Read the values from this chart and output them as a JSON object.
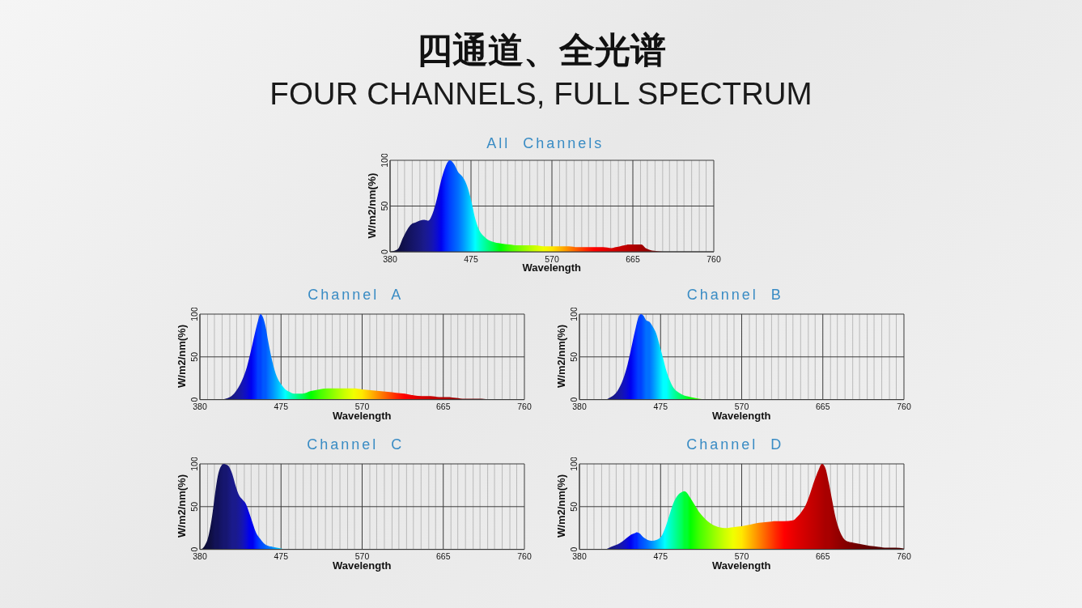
{
  "chart_data": [
    {
      "type": "other",
      "title": "四通道、全光谱",
      "subtitle": "FOUR CHANNELS, FULL SPECTRUM"
    },
    {
      "type": "area",
      "title": "All Channels",
      "xlabel": "Wavelength",
      "ylabel": "W/m2/nm(%)",
      "grid": true,
      "xlim": [
        380,
        760
      ],
      "ylim": [
        0,
        100
      ],
      "yticks": [
        0,
        50,
        100
      ],
      "xticks": [
        380,
        {
          "value": 389,
          "label": null
        },
        {
          "value": 397,
          "label": null
        },
        {
          "value": 406,
          "label": null
        },
        {
          "value": 415,
          "label": null
        },
        {
          "value": 423,
          "label": null
        },
        {
          "value": 432,
          "label": null
        },
        {
          "value": 440,
          "label": null
        },
        {
          "value": 449,
          "label": null
        },
        {
          "value": 458,
          "label": null
        },
        {
          "value": 466,
          "label": null
        },
        475,
        {
          "value": 484,
          "label": null
        },
        {
          "value": 492,
          "label": null
        },
        {
          "value": 501,
          "label": null
        },
        {
          "value": 510,
          "label": null
        },
        {
          "value": 518,
          "label": null
        },
        {
          "value": 527,
          "label": null
        },
        {
          "value": 535,
          "label": null
        },
        {
          "value": 544,
          "label": null
        },
        {
          "value": 553,
          "label": null
        },
        {
          "value": 561,
          "label": null
        },
        570,
        {
          "value": 579,
          "label": null
        },
        {
          "value": 587,
          "label": null
        },
        {
          "value": 596,
          "label": null
        },
        {
          "value": 605,
          "label": null
        },
        {
          "value": 613,
          "label": null
        },
        {
          "value": 622,
          "label": null
        },
        {
          "value": 630,
          "label": null
        },
        {
          "value": 639,
          "label": null
        },
        {
          "value": 648,
          "label": null
        },
        {
          "value": 656,
          "label": null
        },
        665,
        {
          "value": 674,
          "label": null
        },
        {
          "value": 682,
          "label": null
        },
        {
          "value": 691,
          "label": null
        },
        {
          "value": 700,
          "label": null
        },
        {
          "value": 708,
          "label": null
        },
        {
          "value": 717,
          "label": null
        },
        {
          "value": 725,
          "label": null
        },
        {
          "value": 734,
          "label": null
        },
        {
          "value": 743,
          "label": null
        },
        {
          "value": 751,
          "label": null
        },
        760
      ],
      "x": [
        380,
        385,
        390,
        395,
        400,
        405,
        410,
        415,
        420,
        425,
        430,
        435,
        440,
        445,
        450,
        455,
        460,
        465,
        470,
        475,
        480,
        485,
        490,
        495,
        500,
        510,
        520,
        530,
        540,
        550,
        560,
        570,
        580,
        590,
        600,
        610,
        620,
        630,
        640,
        645,
        650,
        655,
        660,
        665,
        670,
        675,
        680,
        685,
        690,
        700,
        720,
        740,
        760
      ],
      "values": [
        0,
        1,
        4,
        15,
        24,
        30,
        32,
        34,
        35,
        34,
        42,
        58,
        78,
        93,
        100,
        96,
        87,
        82,
        73,
        57,
        36,
        23,
        17,
        13,
        11,
        9,
        8,
        7,
        7,
        7,
        6,
        6,
        6,
        6,
        5,
        5,
        5,
        5,
        4,
        5,
        6,
        7,
        8,
        8,
        8,
        8,
        4,
        2,
        1,
        0,
        0,
        0,
        0
      ],
      "colors": [
        "#0a0a28",
        "#0c0c34",
        "#0e0e40",
        "#10104c",
        "#121258",
        "#141464",
        "#161670",
        "#18187c",
        "#1a1a8c",
        "#18189c",
        "#1414b4",
        "#0c0cd0",
        "#0000ee",
        "#0022ff",
        "#0040ff",
        "#0058ff",
        "#0070ff",
        "#0090ff",
        "#00b4ff",
        "#00d8ff",
        "#00ffff",
        "#00ffd0",
        "#00ffa8",
        "#00ff80",
        "#00ff58",
        "#00ff00",
        "#40ff00",
        "#70ff00",
        "#a0ff00",
        "#ccff00",
        "#f0ff00",
        "#ffe800",
        "#ffb800",
        "#ff8800",
        "#ff5800",
        "#ff2800",
        "#ff0000",
        "#ea0000",
        "#d80000",
        "#d00000",
        "#c80000",
        "#c00000",
        "#b80000",
        "#b00000",
        "#a80000",
        "#a00000",
        "#980000",
        "#900000",
        "#880000",
        "#780000",
        "#600000",
        "#500000",
        "#500000"
      ]
    },
    {
      "type": "area",
      "title": "Channel A",
      "xlabel": "Wavelength",
      "ylabel": "W/m2/nm(%)",
      "grid": true,
      "xlim": [
        380,
        760
      ],
      "ylim": [
        0,
        100
      ],
      "yticks": [
        0,
        50,
        100
      ],
      "xticks": [
        380,
        {
          "value": 389,
          "label": null
        },
        {
          "value": 397,
          "label": null
        },
        {
          "value": 406,
          "label": null
        },
        {
          "value": 415,
          "label": null
        },
        {
          "value": 423,
          "label": null
        },
        {
          "value": 432,
          "label": null
        },
        {
          "value": 440,
          "label": null
        },
        {
          "value": 449,
          "label": null
        },
        {
          "value": 458,
          "label": null
        },
        {
          "value": 466,
          "label": null
        },
        475,
        {
          "value": 484,
          "label": null
        },
        {
          "value": 492,
          "label": null
        },
        {
          "value": 501,
          "label": null
        },
        {
          "value": 510,
          "label": null
        },
        {
          "value": 518,
          "label": null
        },
        {
          "value": 527,
          "label": null
        },
        {
          "value": 535,
          "label": null
        },
        {
          "value": 544,
          "label": null
        },
        {
          "value": 553,
          "label": null
        },
        {
          "value": 561,
          "label": null
        },
        570,
        {
          "value": 579,
          "label": null
        },
        {
          "value": 587,
          "label": null
        },
        {
          "value": 596,
          "label": null
        },
        {
          "value": 605,
          "label": null
        },
        {
          "value": 613,
          "label": null
        },
        {
          "value": 622,
          "label": null
        },
        {
          "value": 630,
          "label": null
        },
        {
          "value": 639,
          "label": null
        },
        {
          "value": 648,
          "label": null
        },
        {
          "value": 656,
          "label": null
        },
        665,
        {
          "value": 674,
          "label": null
        },
        {
          "value": 682,
          "label": null
        },
        {
          "value": 691,
          "label": null
        },
        {
          "value": 700,
          "label": null
        },
        {
          "value": 708,
          "label": null
        },
        {
          "value": 717,
          "label": null
        },
        {
          "value": 725,
          "label": null
        },
        {
          "value": 734,
          "label": null
        },
        {
          "value": 743,
          "label": null
        },
        {
          "value": 751,
          "label": null
        },
        760
      ],
      "x": [
        380,
        400,
        405,
        410,
        415,
        420,
        425,
        430,
        435,
        440,
        445,
        448,
        451,
        454,
        457,
        460,
        465,
        470,
        475,
        480,
        485,
        490,
        495,
        500,
        510,
        520,
        530,
        540,
        550,
        560,
        570,
        580,
        590,
        600,
        610,
        620,
        630,
        640,
        650,
        660,
        670,
        680,
        690,
        700,
        710,
        720,
        730,
        740,
        760
      ],
      "values": [
        0,
        0,
        0,
        1,
        3,
        7,
        14,
        24,
        38,
        58,
        80,
        92,
        100,
        96,
        85,
        68,
        44,
        27,
        18,
        12,
        9,
        7,
        7,
        7,
        10,
        12,
        13,
        13,
        13,
        13,
        12,
        11,
        10,
        9,
        8,
        7,
        5,
        4,
        4,
        3,
        3,
        2,
        1,
        1,
        1,
        0,
        0,
        0,
        0
      ],
      "colors": [
        "#0a0a28",
        "#121258",
        "#141464",
        "#161670",
        "#18187c",
        "#1a1a8c",
        "#18189c",
        "#1414b4",
        "#0c0cd0",
        "#0000ee",
        "#0022ff",
        "#0040ff",
        "#0040ff",
        "#0058ff",
        "#0058ff",
        "#0070ff",
        "#0090ff",
        "#00b4ff",
        "#00d8ff",
        "#00ffff",
        "#00ffd0",
        "#00ffa8",
        "#00ff80",
        "#00ff58",
        "#00ff00",
        "#40ff00",
        "#70ff00",
        "#a0ff00",
        "#ccff00",
        "#f0ff00",
        "#ffe800",
        "#ffb800",
        "#ff8800",
        "#ff5800",
        "#ff2800",
        "#ff0000",
        "#ea0000",
        "#d80000",
        "#c80000",
        "#b80000",
        "#a80000",
        "#980000",
        "#880000",
        "#780000",
        "#6a0000",
        "#600000",
        "#580000",
        "#500000",
        "#500000"
      ]
    },
    {
      "type": "area",
      "title": "Channel B",
      "xlabel": "Wavelength",
      "ylabel": "W/m2/nm(%)",
      "grid": true,
      "xlim": [
        380,
        760
      ],
      "ylim": [
        0,
        100
      ],
      "yticks": [
        0,
        50,
        100
      ],
      "xticks": [
        380,
        {
          "value": 389,
          "label": null
        },
        {
          "value": 397,
          "label": null
        },
        {
          "value": 406,
          "label": null
        },
        {
          "value": 415,
          "label": null
        },
        {
          "value": 423,
          "label": null
        },
        {
          "value": 432,
          "label": null
        },
        {
          "value": 440,
          "label": null
        },
        {
          "value": 449,
          "label": null
        },
        {
          "value": 458,
          "label": null
        },
        {
          "value": 466,
          "label": null
        },
        475,
        {
          "value": 484,
          "label": null
        },
        {
          "value": 492,
          "label": null
        },
        {
          "value": 501,
          "label": null
        },
        {
          "value": 510,
          "label": null
        },
        {
          "value": 518,
          "label": null
        },
        {
          "value": 527,
          "label": null
        },
        {
          "value": 535,
          "label": null
        },
        {
          "value": 544,
          "label": null
        },
        {
          "value": 553,
          "label": null
        },
        {
          "value": 561,
          "label": null
        },
        570,
        {
          "value": 579,
          "label": null
        },
        {
          "value": 587,
          "label": null
        },
        {
          "value": 596,
          "label": null
        },
        {
          "value": 605,
          "label": null
        },
        {
          "value": 613,
          "label": null
        },
        {
          "value": 622,
          "label": null
        },
        {
          "value": 630,
          "label": null
        },
        {
          "value": 639,
          "label": null
        },
        {
          "value": 648,
          "label": null
        },
        {
          "value": 656,
          "label": null
        },
        665,
        {
          "value": 674,
          "label": null
        },
        {
          "value": 682,
          "label": null
        },
        {
          "value": 691,
          "label": null
        },
        {
          "value": 700,
          "label": null
        },
        {
          "value": 708,
          "label": null
        },
        {
          "value": 717,
          "label": null
        },
        {
          "value": 725,
          "label": null
        },
        {
          "value": 734,
          "label": null
        },
        {
          "value": 743,
          "label": null
        },
        {
          "value": 751,
          "label": null
        },
        760
      ],
      "x": [
        380,
        400,
        410,
        415,
        420,
        425,
        430,
        435,
        440,
        445,
        449,
        452,
        455,
        458,
        462,
        466,
        470,
        474,
        478,
        482,
        486,
        490,
        495,
        500,
        505,
        510,
        520,
        530,
        540,
        560,
        600,
        650,
        700,
        760
      ],
      "values": [
        0,
        0,
        0,
        2,
        5,
        11,
        21,
        36,
        57,
        80,
        96,
        100,
        98,
        93,
        91,
        85,
        77,
        63,
        48,
        33,
        22,
        14,
        9,
        6,
        4,
        3,
        1,
        0,
        0,
        0,
        0,
        0,
        0,
        0
      ],
      "colors": [
        "#0a0a28",
        "#121258",
        "#161670",
        "#18187c",
        "#1a1a8c",
        "#18189c",
        "#1414b4",
        "#0c0cd0",
        "#0000ee",
        "#0022ff",
        "#0040ff",
        "#0040ff",
        "#0058ff",
        "#0070ff",
        "#0070ff",
        "#0090ff",
        "#00b4ff",
        "#00d8ff",
        "#00ffff",
        "#00ffff",
        "#00ffd0",
        "#00ffa8",
        "#00ff80",
        "#00ff58",
        "#00ff30",
        "#00ff00",
        "#40ff00",
        "#70ff00",
        "#a0ff00",
        "#f0ff00",
        "#ff5800",
        "#c80000",
        "#780000",
        "#500000"
      ]
    },
    {
      "type": "area",
      "title": "Channel C",
      "xlabel": "Wavelength",
      "ylabel": "W/m2/nm(%)",
      "grid": true,
      "xlim": [
        380,
        760
      ],
      "ylim": [
        0,
        100
      ],
      "yticks": [
        0,
        50,
        100
      ],
      "xticks": [
        380,
        {
          "value": 389,
          "label": null
        },
        {
          "value": 397,
          "label": null
        },
        {
          "value": 406,
          "label": null
        },
        {
          "value": 415,
          "label": null
        },
        {
          "value": 423,
          "label": null
        },
        {
          "value": 432,
          "label": null
        },
        {
          "value": 440,
          "label": null
        },
        {
          "value": 449,
          "label": null
        },
        {
          "value": 458,
          "label": null
        },
        {
          "value": 466,
          "label": null
        },
        475,
        {
          "value": 484,
          "label": null
        },
        {
          "value": 492,
          "label": null
        },
        {
          "value": 501,
          "label": null
        },
        {
          "value": 510,
          "label": null
        },
        {
          "value": 518,
          "label": null
        },
        {
          "value": 527,
          "label": null
        },
        {
          "value": 535,
          "label": null
        },
        {
          "value": 544,
          "label": null
        },
        {
          "value": 553,
          "label": null
        },
        {
          "value": 561,
          "label": null
        },
        570,
        {
          "value": 579,
          "label": null
        },
        {
          "value": 587,
          "label": null
        },
        {
          "value": 596,
          "label": null
        },
        {
          "value": 605,
          "label": null
        },
        {
          "value": 613,
          "label": null
        },
        {
          "value": 622,
          "label": null
        },
        {
          "value": 630,
          "label": null
        },
        {
          "value": 639,
          "label": null
        },
        {
          "value": 648,
          "label": null
        },
        {
          "value": 656,
          "label": null
        },
        665,
        {
          "value": 674,
          "label": null
        },
        {
          "value": 682,
          "label": null
        },
        {
          "value": 691,
          "label": null
        },
        {
          "value": 700,
          "label": null
        },
        {
          "value": 708,
          "label": null
        },
        {
          "value": 717,
          "label": null
        },
        {
          "value": 725,
          "label": null
        },
        {
          "value": 734,
          "label": null
        },
        {
          "value": 743,
          "label": null
        },
        {
          "value": 751,
          "label": null
        },
        760
      ],
      "x": [
        380,
        383,
        386,
        389,
        392,
        395,
        398,
        401,
        404,
        408,
        411,
        414,
        418,
        422,
        426,
        430,
        434,
        438,
        442,
        446,
        450,
        455,
        460,
        465,
        470,
        475,
        480,
        490,
        500,
        550,
        600,
        700,
        760
      ],
      "values": [
        0,
        1,
        5,
        12,
        25,
        44,
        67,
        86,
        96,
        100,
        99,
        97,
        88,
        74,
        63,
        58,
        53,
        42,
        30,
        19,
        13,
        7,
        4,
        3,
        2,
        1,
        0,
        0,
        0,
        0,
        0,
        0,
        0
      ],
      "colors": [
        "#0a0a28",
        "#0c0c34",
        "#0c0c34",
        "#0e0e40",
        "#0e0e40",
        "#10104c",
        "#121258",
        "#121258",
        "#141464",
        "#161670",
        "#161670",
        "#18187c",
        "#1a1a8c",
        "#1a1a8c",
        "#18189c",
        "#1414b4",
        "#0c0cd0",
        "#0000ee",
        "#0000ee",
        "#0022ff",
        "#0040ff",
        "#0058ff",
        "#0070ff",
        "#0090ff",
        "#00b4ff",
        "#00d8ff",
        "#00ffff",
        "#00ffa8",
        "#00ff58",
        "#ccff00",
        "#ff5800",
        "#780000",
        "#500000"
      ]
    },
    {
      "type": "area",
      "title": "Channel D",
      "xlabel": "Wavelength",
      "ylabel": "W/m2/nm(%)",
      "grid": true,
      "xlim": [
        380,
        760
      ],
      "ylim": [
        0,
        100
      ],
      "yticks": [
        0,
        50,
        100
      ],
      "xticks": [
        380,
        {
          "value": 389,
          "label": null
        },
        {
          "value": 397,
          "label": null
        },
        {
          "value": 406,
          "label": null
        },
        {
          "value": 415,
          "label": null
        },
        {
          "value": 423,
          "label": null
        },
        {
          "value": 432,
          "label": null
        },
        {
          "value": 440,
          "label": null
        },
        {
          "value": 449,
          "label": null
        },
        {
          "value": 458,
          "label": null
        },
        {
          "value": 466,
          "label": null
        },
        475,
        {
          "value": 484,
          "label": null
        },
        {
          "value": 492,
          "label": null
        },
        {
          "value": 501,
          "label": null
        },
        {
          "value": 510,
          "label": null
        },
        {
          "value": 518,
          "label": null
        },
        {
          "value": 527,
          "label": null
        },
        {
          "value": 535,
          "label": null
        },
        {
          "value": 544,
          "label": null
        },
        {
          "value": 553,
          "label": null
        },
        {
          "value": 561,
          "label": null
        },
        570,
        {
          "value": 579,
          "label": null
        },
        {
          "value": 587,
          "label": null
        },
        {
          "value": 596,
          "label": null
        },
        {
          "value": 605,
          "label": null
        },
        {
          "value": 613,
          "label": null
        },
        {
          "value": 622,
          "label": null
        },
        {
          "value": 630,
          "label": null
        },
        {
          "value": 639,
          "label": null
        },
        {
          "value": 648,
          "label": null
        },
        {
          "value": 656,
          "label": null
        },
        665,
        {
          "value": 674,
          "label": null
        },
        {
          "value": 682,
          "label": null
        },
        {
          "value": 691,
          "label": null
        },
        {
          "value": 700,
          "label": null
        },
        {
          "value": 708,
          "label": null
        },
        {
          "value": 717,
          "label": null
        },
        {
          "value": 725,
          "label": null
        },
        {
          "value": 734,
          "label": null
        },
        {
          "value": 743,
          "label": null
        },
        {
          "value": 751,
          "label": null
        },
        760
      ],
      "x": [
        380,
        400,
        410,
        415,
        420,
        425,
        430,
        435,
        440,
        445,
        447,
        450,
        455,
        460,
        465,
        470,
        475,
        480,
        485,
        490,
        495,
        500,
        503,
        506,
        510,
        515,
        520,
        525,
        530,
        540,
        550,
        560,
        570,
        580,
        590,
        600,
        610,
        620,
        630,
        635,
        640,
        645,
        650,
        655,
        660,
        664,
        668,
        672,
        676,
        680,
        685,
        690,
        695,
        700,
        710,
        720,
        730,
        740,
        750,
        760
      ],
      "values": [
        0,
        0,
        0,
        2,
        4,
        6,
        9,
        13,
        17,
        19,
        20,
        19,
        14,
        11,
        10,
        11,
        14,
        24,
        39,
        54,
        63,
        67,
        68,
        66,
        60,
        52,
        44,
        38,
        33,
        27,
        25,
        26,
        27,
        29,
        31,
        32,
        33,
        33,
        34,
        38,
        44,
        52,
        65,
        80,
        93,
        100,
        95,
        78,
        57,
        37,
        21,
        12,
        9,
        8,
        6,
        4,
        3,
        2,
        2,
        1
      ],
      "colors": [
        "#0a0a28",
        "#121258",
        "#161670",
        "#18187c",
        "#1a1a8c",
        "#18189c",
        "#1414b4",
        "#0c0cd0",
        "#0000ee",
        "#0022ff",
        "#0022ff",
        "#0040ff",
        "#0058ff",
        "#0070ff",
        "#0090ff",
        "#00b4ff",
        "#00d8ff",
        "#00ffff",
        "#00ffd0",
        "#00ffa8",
        "#00ff80",
        "#00ff58",
        "#00ff30",
        "#00ff30",
        "#00ff00",
        "#20ff00",
        "#40ff00",
        "#58ff00",
        "#70ff00",
        "#a0ff00",
        "#ccff00",
        "#f0ff00",
        "#ffe800",
        "#ffb800",
        "#ff8800",
        "#ff5800",
        "#ff2800",
        "#ff0000",
        "#ea0000",
        "#e00000",
        "#d80000",
        "#d00000",
        "#c80000",
        "#c00000",
        "#b80000",
        "#b00000",
        "#a80000",
        "#a80000",
        "#a00000",
        "#980000",
        "#900000",
        "#880000",
        "#800000",
        "#780000",
        "#6a0000",
        "#600000",
        "#580000",
        "#500000",
        "#500000",
        "#500000"
      ]
    }
  ]
}
